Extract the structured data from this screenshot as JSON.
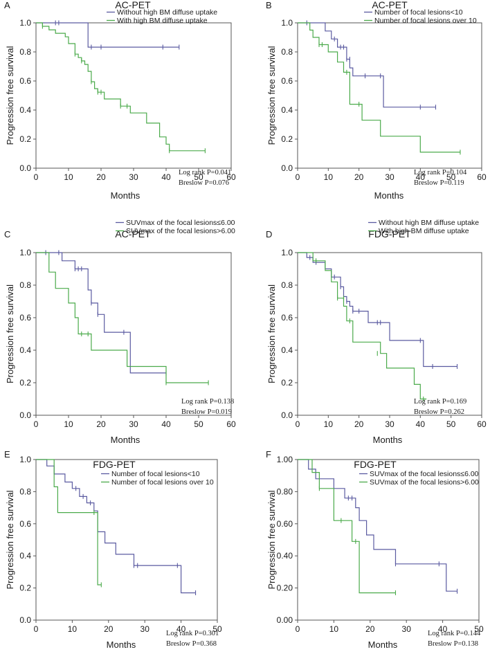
{
  "chart_data": [
    {
      "type": "line",
      "panel": "A",
      "title": "AC-PET",
      "xlabel": "Months",
      "ylabel": "Progression free survival",
      "xlim": [
        0,
        60
      ],
      "ylim": [
        0,
        1
      ],
      "x_ticks": [
        "0",
        "10",
        "20",
        "30",
        "40",
        "50",
        "60"
      ],
      "y_ticks": [
        "0.0",
        "0.2",
        "0.4",
        "0.6",
        "0.8",
        "1.0"
      ],
      "series": [
        {
          "name": "Without high BM diffuse uptake",
          "color": "#5a5aa0",
          "x": [
            0,
            16,
            44
          ],
          "y": [
            1.0,
            0.833,
            0.833
          ],
          "censor_x": [
            6,
            7,
            17,
            20,
            39,
            44
          ],
          "censor_y": [
            1.0,
            1.0,
            0.833,
            0.833,
            0.833,
            0.833
          ]
        },
        {
          "name": "With high BM diffuse uptake",
          "color": "#4aaa4a",
          "x": [
            0,
            2,
            4,
            6,
            9,
            10,
            12,
            13,
            14,
            15,
            16,
            17,
            18,
            19,
            21,
            26,
            29,
            34,
            38,
            40,
            41,
            52
          ],
          "y": [
            1.0,
            0.976,
            0.952,
            0.928,
            0.904,
            0.857,
            0.785,
            0.761,
            0.738,
            0.714,
            0.666,
            0.595,
            0.547,
            0.523,
            0.476,
            0.427,
            0.38,
            0.31,
            0.215,
            0.165,
            0.12,
            0.12
          ],
          "censor_x": [
            2,
            12,
            14,
            17,
            19,
            20,
            26,
            28,
            41,
            52
          ],
          "censor_y": [
            0.976,
            0.785,
            0.738,
            0.595,
            0.523,
            0.523,
            0.427,
            0.427,
            0.12,
            0.12
          ]
        }
      ],
      "annotations": [
        "Log rank P=0.041",
        "Breslow P=0.076"
      ]
    },
    {
      "type": "line",
      "panel": "B",
      "title": "AC-PET",
      "xlabel": "Months",
      "ylabel": "Progression free survival",
      "xlim": [
        0,
        60
      ],
      "ylim": [
        0,
        1
      ],
      "x_ticks": [
        "0",
        "10",
        "20",
        "30",
        "40",
        "50",
        "60"
      ],
      "y_ticks": [
        "0.0",
        "0.2",
        "0.4",
        "0.6",
        "0.8",
        "1.0"
      ],
      "series": [
        {
          "name": "Number of focal lesions<10",
          "color": "#5a5aa0",
          "x": [
            0,
            9,
            11,
            13,
            16,
            17,
            18,
            28,
            45
          ],
          "y": [
            1.0,
            0.944,
            0.889,
            0.833,
            0.75,
            0.69,
            0.635,
            0.42,
            0.42
          ],
          "censor_x": [
            3,
            12,
            14,
            15,
            16,
            17,
            22,
            27,
            40,
            45
          ],
          "censor_y": [
            1.0,
            0.889,
            0.833,
            0.833,
            0.75,
            0.75,
            0.635,
            0.635,
            0.42,
            0.42
          ]
        },
        {
          "name": "Number of focal lesions over 10",
          "color": "#4aaa4a",
          "x": [
            0,
            4,
            5,
            7,
            10,
            13,
            15,
            17,
            21,
            27,
            40,
            53
          ],
          "y": [
            1.0,
            0.95,
            0.9,
            0.85,
            0.8,
            0.73,
            0.66,
            0.44,
            0.33,
            0.22,
            0.11,
            0.11
          ],
          "censor_x": [
            7,
            8,
            16,
            20,
            53
          ],
          "censor_y": [
            0.85,
            0.85,
            0.66,
            0.44,
            0.11
          ]
        }
      ],
      "annotations": [
        "Log rank P=0.104",
        "Breslow P=0.119"
      ]
    },
    {
      "type": "line",
      "panel": "C",
      "title": "AC-PET",
      "xlabel": "Months",
      "ylabel": "Progression free survival",
      "xlim": [
        0,
        60
      ],
      "ylim": [
        0,
        1
      ],
      "x_ticks": [
        "0",
        "10",
        "20",
        "30",
        "40",
        "50",
        "60"
      ],
      "y_ticks": [
        "0.0",
        "0.2",
        "0.4",
        "0.6",
        "0.8",
        "1.0"
      ],
      "series": [
        {
          "name": "SUVmax of the focal lesions≤6.00",
          "color": "#5a5aa0",
          "x": [
            0,
            8,
            11,
            12,
            14,
            16,
            17,
            19,
            21,
            28,
            29,
            40
          ],
          "y": [
            1.0,
            0.95,
            0.95,
            0.9,
            0.9,
            0.77,
            0.69,
            0.62,
            0.51,
            0.51,
            0.26,
            0.26
          ],
          "censor_x": [
            3,
            7,
            12,
            13,
            14,
            17,
            19,
            27,
            40
          ],
          "censor_y": [
            1.0,
            1.0,
            0.9,
            0.9,
            0.9,
            0.69,
            0.62,
            0.51,
            0.26
          ]
        },
        {
          "name": "SUVmax of the focal lesions>6.00",
          "color": "#4aaa4a",
          "x": [
            0,
            4,
            6,
            10,
            12,
            13,
            16,
            17,
            28,
            40,
            53
          ],
          "y": [
            1.0,
            0.88,
            0.78,
            0.69,
            0.6,
            0.5,
            0.5,
            0.4,
            0.3,
            0.2,
            0.2
          ],
          "censor_x": [
            14,
            16,
            40,
            53
          ],
          "censor_y": [
            0.5,
            0.5,
            0.2,
            0.2
          ]
        }
      ],
      "annotations": [
        "Log rank P=0.138",
        "Breslow P=0.019"
      ]
    },
    {
      "type": "line",
      "panel": "D",
      "title": "FDG-PET",
      "xlabel": "Months",
      "ylabel": "Progression free survival",
      "xlim": [
        0,
        60
      ],
      "ylim": [
        0,
        1
      ],
      "x_ticks": [
        "0",
        "10",
        "20",
        "30",
        "40",
        "50",
        "60"
      ],
      "y_ticks": [
        "0.0",
        "0.2",
        "0.4",
        "0.6",
        "0.8",
        "1.0"
      ],
      "series": [
        {
          "name": "Without high BM diffuse uptake",
          "color": "#5a5aa0",
          "x": [
            0,
            3,
            5,
            9,
            11,
            14,
            15,
            16,
            17,
            18,
            23,
            30,
            41,
            52
          ],
          "y": [
            1.0,
            0.97,
            0.94,
            0.9,
            0.85,
            0.79,
            0.73,
            0.7,
            0.67,
            0.64,
            0.57,
            0.46,
            0.3,
            0.3
          ],
          "censor_x": [
            4,
            6,
            12,
            14,
            16,
            18,
            20,
            26,
            27,
            40,
            44,
            52
          ],
          "censor_y": [
            0.97,
            0.94,
            0.85,
            0.79,
            0.7,
            0.64,
            0.64,
            0.57,
            0.57,
            0.46,
            0.3,
            0.3
          ]
        },
        {
          "name": "With high BM diffuse uptake",
          "color": "#4aaa4a",
          "x": [
            0,
            5,
            9,
            11,
            13,
            15,
            16,
            18,
            27,
            29,
            38,
            40,
            42
          ],
          "y": [
            1.0,
            0.95,
            0.89,
            0.82,
            0.72,
            0.67,
            0.58,
            0.45,
            0.38,
            0.29,
            0.19,
            0.1,
            0.1
          ],
          "censor_x": [
            6,
            9,
            13,
            15,
            17,
            26,
            41
          ],
          "censor_y": [
            0.95,
            0.92,
            0.72,
            0.72,
            0.58,
            0.38,
            0.1
          ]
        }
      ],
      "annotations": [
        "Log rank P=0.169",
        "Breslow P=0.262"
      ]
    },
    {
      "type": "line",
      "panel": "E",
      "title": "FDG-PET",
      "xlabel": "Months",
      "ylabel": "Progression free survival",
      "xlim": [
        0,
        50
      ],
      "ylim": [
        0,
        1
      ],
      "x_ticks": [
        "0",
        "10",
        "20",
        "30",
        "40",
        "50"
      ],
      "y_ticks": [
        "0.0",
        "0.2",
        "0.4",
        "0.6",
        "0.8",
        "1.0"
      ],
      "series": [
        {
          "name": "Number of focal lesions<10",
          "color": "#5a5aa0",
          "x": [
            0,
            3,
            5,
            8,
            10,
            12,
            14,
            16,
            17,
            19,
            22,
            27,
            40,
            44
          ],
          "y": [
            1.0,
            0.96,
            0.91,
            0.86,
            0.82,
            0.77,
            0.73,
            0.68,
            0.55,
            0.48,
            0.41,
            0.34,
            0.17,
            0.17
          ],
          "censor_x": [
            11,
            13,
            15,
            27,
            28,
            39,
            44
          ],
          "censor_y": [
            0.82,
            0.77,
            0.73,
            0.34,
            0.34,
            0.34,
            0.17
          ]
        },
        {
          "name": "Number of focal lesions over 10",
          "color": "#4aaa4a",
          "x": [
            0,
            5,
            6,
            16,
            17,
            18
          ],
          "y": [
            1.0,
            0.83,
            0.67,
            0.67,
            0.22,
            0.22
          ],
          "censor_x": [
            16,
            18
          ],
          "censor_y": [
            0.67,
            0.22
          ]
        }
      ],
      "annotations": [
        "Log rank P=0.301",
        "Breslow P=0.368"
      ]
    },
    {
      "type": "line",
      "panel": "F",
      "title": "FDG-PET",
      "xlabel": "Months",
      "ylabel": "Progression free survival",
      "xlim": [
        0,
        50
      ],
      "ylim": [
        0,
        1
      ],
      "x_ticks": [
        "0",
        "10",
        "20",
        "30",
        "40",
        "50"
      ],
      "y_ticks": [
        "0.00",
        "0.20",
        "0.40",
        "0.60",
        "0.80",
        "1.00"
      ],
      "series": [
        {
          "name": "SUVmax of the focal lesions≤6.00",
          "color": "#5a5aa0",
          "x": [
            0,
            3,
            5,
            10,
            13,
            16,
            17,
            19,
            21,
            27,
            41,
            44
          ],
          "y": [
            1.0,
            0.94,
            0.88,
            0.82,
            0.76,
            0.7,
            0.62,
            0.53,
            0.44,
            0.35,
            0.18,
            0.18
          ],
          "censor_x": [
            14,
            15,
            27,
            39,
            44
          ],
          "censor_y": [
            0.76,
            0.76,
            0.35,
            0.35,
            0.18
          ]
        },
        {
          "name": "SUVmax of the focal lesions>6.00",
          "color": "#4aaa4a",
          "x": [
            0,
            4,
            6,
            10,
            15,
            17,
            27
          ],
          "y": [
            1.0,
            0.92,
            0.82,
            0.62,
            0.49,
            0.17,
            0.17
          ],
          "censor_x": [
            6,
            12,
            16,
            27
          ],
          "censor_y": [
            0.82,
            0.62,
            0.49,
            0.17
          ]
        }
      ],
      "annotations": [
        "Log rank P=0.144",
        "Breslow P=0.138"
      ]
    }
  ]
}
